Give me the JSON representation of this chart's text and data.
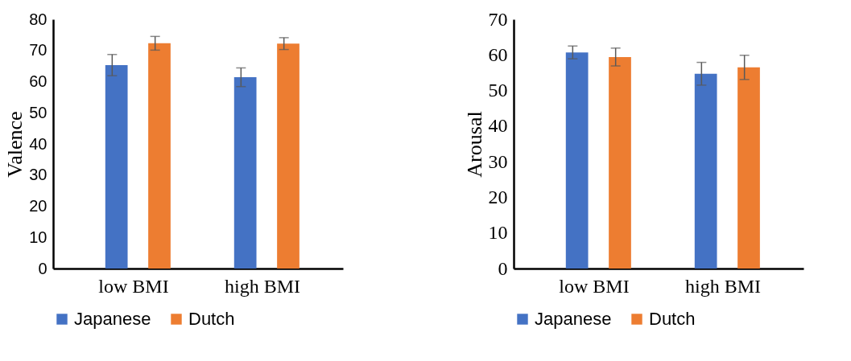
{
  "chart_data": [
    {
      "type": "bar",
      "ylabel": "Valence",
      "categories": [
        "low BMI",
        "high BMI"
      ],
      "ylim": [
        0,
        80
      ],
      "yticks": [
        0,
        10,
        20,
        30,
        40,
        50,
        60,
        70,
        80
      ],
      "legend": "bottom",
      "series": [
        {
          "name": "Japanese",
          "color": "#4472c4",
          "values": [
            65.3,
            61.4
          ],
          "errors": [
            3.4,
            3.0
          ]
        },
        {
          "name": "Dutch",
          "color": "#ed7d31",
          "values": [
            72.3,
            72.2
          ],
          "errors": [
            2.2,
            1.9
          ]
        }
      ]
    },
    {
      "type": "bar",
      "ylabel": "Arousal",
      "categories": [
        "low BMI",
        "high BMI"
      ],
      "ylim": [
        0,
        70
      ],
      "yticks": [
        0,
        10,
        20,
        30,
        40,
        50,
        60,
        70
      ],
      "legend": "bottom",
      "series": [
        {
          "name": "Japanese",
          "color": "#4472c4",
          "values": [
            60.7,
            54.7
          ],
          "errors": [
            1.8,
            3.2
          ]
        },
        {
          "name": "Dutch",
          "color": "#ed7d31",
          "values": [
            59.4,
            56.5
          ],
          "errors": [
            2.5,
            3.4
          ]
        }
      ]
    }
  ]
}
